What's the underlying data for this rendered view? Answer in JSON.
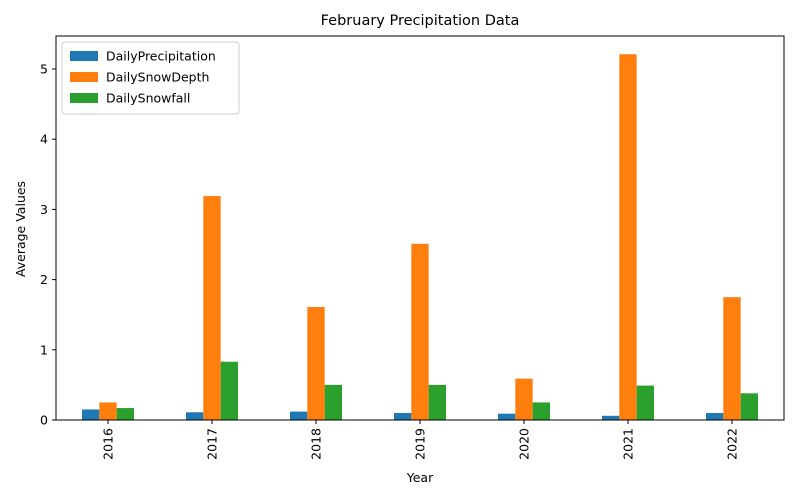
{
  "chart_data": {
    "type": "bar",
    "title": "February Precipitation Data",
    "xlabel": "Year",
    "ylabel": "Average Values",
    "categories": [
      "2016",
      "2017",
      "2018",
      "2019",
      "2020",
      "2021",
      "2022"
    ],
    "ylim": [
      0,
      5.47
    ],
    "yticks": [
      0,
      1,
      2,
      3,
      4,
      5
    ],
    "legend_position": "top-left",
    "grid": false,
    "series": [
      {
        "name": "DailyPrecipitation",
        "color": "#1f77b4",
        "values": [
          0.15,
          0.11,
          0.12,
          0.1,
          0.09,
          0.06,
          0.1
        ]
      },
      {
        "name": "DailySnowDepth",
        "color": "#ff7f0e",
        "values": [
          0.25,
          3.19,
          1.61,
          2.51,
          0.59,
          5.21,
          1.75
        ]
      },
      {
        "name": "DailySnowfall",
        "color": "#2ca02c",
        "values": [
          0.17,
          0.83,
          0.5,
          0.5,
          0.25,
          0.49,
          0.38
        ]
      }
    ]
  }
}
